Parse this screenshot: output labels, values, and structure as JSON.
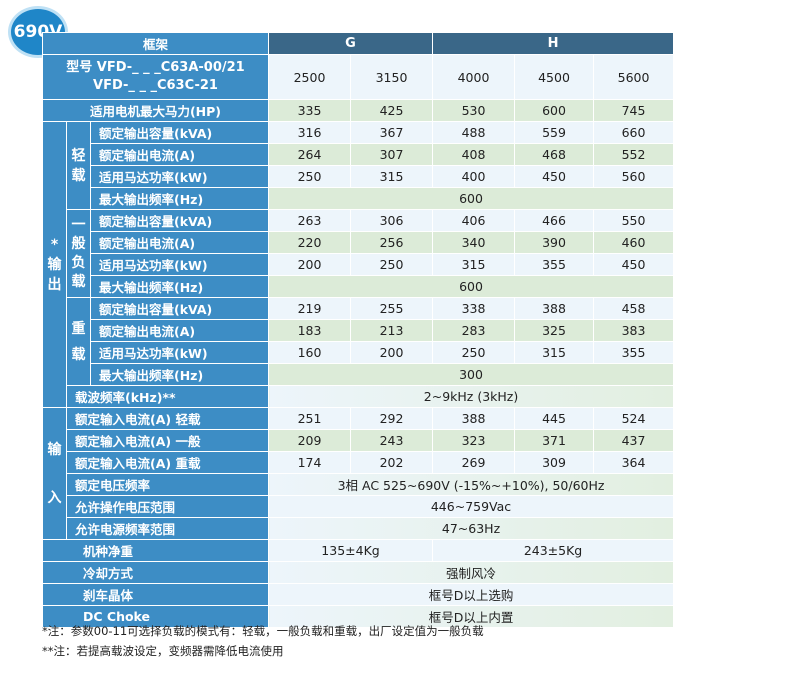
{
  "badge": "690V",
  "header": {
    "frame_label": "框架",
    "frame_g": "G",
    "frame_h": "H"
  },
  "model": {
    "line1": "型号 VFD-_ _ _C63A-00/21",
    "line2": "VFD-_ _ _C63C-21",
    "values": [
      "2500",
      "3150",
      "4000",
      "4500",
      "5600"
    ]
  },
  "max_hp": {
    "label": "适用电机最大马力(HP)",
    "values": [
      "335",
      "425",
      "530",
      "600",
      "745"
    ]
  },
  "output": {
    "section_label": "*输出",
    "light": {
      "label": "轻载",
      "rows": [
        {
          "label": "额定输出容量(kVA)",
          "values": [
            "316",
            "367",
            "488",
            "559",
            "660"
          ]
        },
        {
          "label": "额定输出电流(A)",
          "values": [
            "264",
            "307",
            "408",
            "468",
            "552"
          ]
        },
        {
          "label": "适用马达功率(kW)",
          "values": [
            "250",
            "315",
            "400",
            "450",
            "560"
          ]
        },
        {
          "label": "最大输出频率(Hz)",
          "value": "600"
        }
      ]
    },
    "normal": {
      "label": "一般负载",
      "rows": [
        {
          "label": "额定输出容量(kVA)",
          "values": [
            "263",
            "306",
            "406",
            "466",
            "550"
          ]
        },
        {
          "label": "额定输出电流(A)",
          "values": [
            "220",
            "256",
            "340",
            "390",
            "460"
          ]
        },
        {
          "label": "适用马达功率(kW)",
          "values": [
            "200",
            "250",
            "315",
            "355",
            "450"
          ]
        },
        {
          "label": "最大输出频率(Hz)",
          "value": "600"
        }
      ]
    },
    "heavy": {
      "label": "重载",
      "rows": [
        {
          "label": "额定输出容量(kVA)",
          "values": [
            "219",
            "255",
            "338",
            "388",
            "458"
          ]
        },
        {
          "label": "额定输出电流(A)",
          "values": [
            "183",
            "213",
            "283",
            "325",
            "383"
          ]
        },
        {
          "label": "适用马达功率(kW)",
          "values": [
            "160",
            "200",
            "250",
            "315",
            "355"
          ]
        },
        {
          "label": "最大输出频率(Hz)",
          "value": "300"
        }
      ]
    },
    "carrier": {
      "label": "载波频率(kHz)**",
      "value": "2~9kHz (3kHz)"
    }
  },
  "input": {
    "section_label": "输入",
    "rows": [
      {
        "label": "额定输入电流(A) 轻载",
        "values": [
          "251",
          "292",
          "388",
          "445",
          "524"
        ]
      },
      {
        "label": "额定输入电流(A) 一般",
        "values": [
          "209",
          "243",
          "323",
          "371",
          "437"
        ]
      },
      {
        "label": "额定输入电流(A) 重载",
        "values": [
          "174",
          "202",
          "269",
          "309",
          "364"
        ]
      },
      {
        "label": "额定电压频率",
        "value": "3相 AC 525~690V (-15%~+10%), 50/60Hz"
      },
      {
        "label": "允许操作电压范围",
        "value": "446~759Vac"
      },
      {
        "label": "允许电源频率范围",
        "value": "47~63Hz"
      }
    ]
  },
  "weight": {
    "label": "机种净重",
    "g": "135±4Kg",
    "h": "243±5Kg"
  },
  "cooling": {
    "label": "冷却方式",
    "value": "强制风冷"
  },
  "brake": {
    "label": "刹车晶体",
    "value": "框号D以上选购"
  },
  "dc_choke": {
    "label": "DC Choke",
    "value": "框号D以上内置"
  },
  "notes": [
    "*注：参数00-11可选择负载的模式有：轻载，一般负载和重载，出厂设定值为一般负载",
    "**注：若提高载波设定，变频器需降低电流使用"
  ]
}
